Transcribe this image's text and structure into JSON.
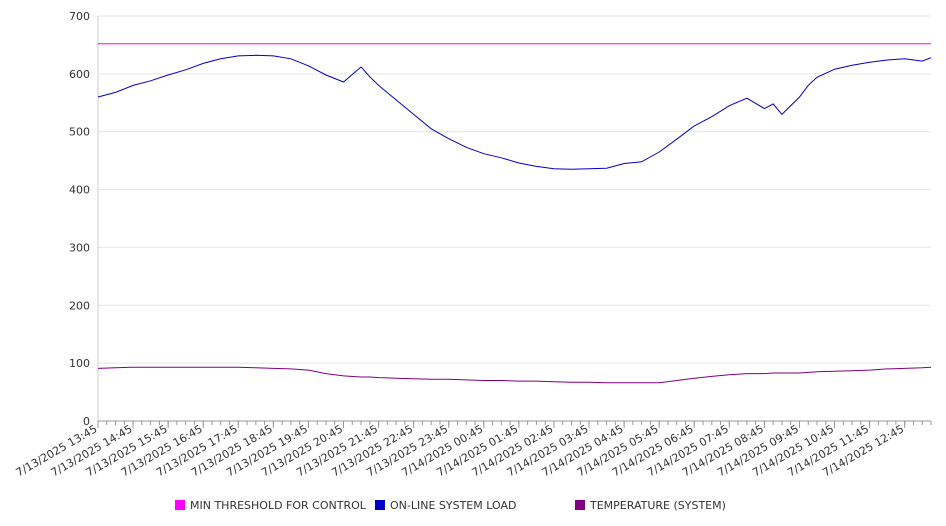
{
  "chart_data": {
    "type": "line",
    "title": "",
    "xlabel": "",
    "ylabel": "",
    "ylim": [
      0,
      700
    ],
    "y_ticks": [
      0,
      100,
      200,
      300,
      400,
      500,
      600,
      700
    ],
    "grid": "horizontal",
    "legend_position": "bottom",
    "x_tick_labels": [
      "7/13/2025 13:45",
      "7/13/2025 14:45",
      "7/13/2025 15:45",
      "7/13/2025 16:45",
      "7/13/2025 17:45",
      "7/13/2025 18:45",
      "7/13/2025 19:45",
      "7/13/2025 20:45",
      "7/13/2025 21:45",
      "7/13/2025 22:45",
      "7/13/2025 23:45",
      "7/14/2025 00:45",
      "7/14/2025 01:45",
      "7/14/2025 02:45",
      "7/14/2025 03:45",
      "7/14/2025 04:45",
      "7/14/2025 05:45",
      "7/14/2025 06:45",
      "7/14/2025 07:45",
      "7/14/2025 08:45",
      "7/14/2025 09:45",
      "7/14/2025 10:45",
      "7/14/2025 11:45",
      "7/14/2025 12:45"
    ],
    "x": [
      "7/13/2025 13:45",
      "7/13/2025 14:15",
      "7/13/2025 14:45",
      "7/13/2025 15:15",
      "7/13/2025 15:45",
      "7/13/2025 16:15",
      "7/13/2025 16:45",
      "7/13/2025 17:15",
      "7/13/2025 17:45",
      "7/13/2025 18:15",
      "7/13/2025 18:45",
      "7/13/2025 19:15",
      "7/13/2025 19:45",
      "7/13/2025 20:15",
      "7/13/2025 20:45",
      "7/13/2025 21:15",
      "7/13/2025 21:30",
      "7/13/2025 21:45",
      "7/13/2025 22:15",
      "7/13/2025 22:45",
      "7/13/2025 23:15",
      "7/13/2025 23:45",
      "7/14/2025 00:15",
      "7/14/2025 00:45",
      "7/14/2025 01:15",
      "7/14/2025 01:45",
      "7/14/2025 02:15",
      "7/14/2025 02:45",
      "7/14/2025 03:15",
      "7/14/2025 03:45",
      "7/14/2025 04:15",
      "7/14/2025 04:45",
      "7/14/2025 05:15",
      "7/14/2025 05:45",
      "7/14/2025 06:15",
      "7/14/2025 06:45",
      "7/14/2025 07:15",
      "7/14/2025 07:45",
      "7/14/2025 08:15",
      "7/14/2025 08:45",
      "7/14/2025 09:00",
      "7/14/2025 09:15",
      "7/14/2025 09:45",
      "7/14/2025 10:00",
      "7/14/2025 10:15",
      "7/14/2025 10:45",
      "7/14/2025 11:15",
      "7/14/2025 11:45",
      "7/14/2025 12:15",
      "7/14/2025 12:45",
      "7/14/2025 13:15",
      "7/14/2025 13:30"
    ],
    "series": [
      {
        "name": "MIN THRESHOLD FOR CONTROL",
        "color": "#ff00ff",
        "values": [
          652,
          652,
          652,
          652,
          652,
          652,
          652,
          652,
          652,
          652,
          652,
          652,
          652,
          652,
          652,
          652,
          652,
          652,
          652,
          652,
          652,
          652,
          652,
          652,
          652,
          652,
          652,
          652,
          652,
          652,
          652,
          652,
          652,
          652,
          652,
          652,
          652,
          652,
          652,
          652,
          652,
          652,
          652,
          652,
          652,
          652,
          652,
          652,
          652,
          652,
          652,
          652
        ]
      },
      {
        "name": "ON-LINE SYSTEM LOAD",
        "color": "#0000cc",
        "values": [
          560,
          568,
          580,
          588,
          598,
          607,
          618,
          626,
          631,
          632,
          631,
          626,
          614,
          598,
          586,
          612,
          595,
          580,
          555,
          530,
          505,
          488,
          473,
          462,
          455,
          446,
          440,
          436,
          435,
          436,
          437,
          445,
          448,
          465,
          487,
          510,
          526,
          545,
          558,
          540,
          548,
          530,
          560,
          580,
          594,
          608,
          615,
          620,
          624,
          626,
          622,
          628
        ]
      },
      {
        "name": "TEMPERATURE (SYSTEM)",
        "color": "#800080",
        "values": [
          91,
          92,
          93,
          93,
          93,
          93,
          93,
          93,
          93,
          92,
          91,
          90,
          88,
          82,
          78,
          76,
          76,
          75,
          74,
          73,
          72,
          72,
          71,
          70,
          70,
          69,
          69,
          68,
          67,
          67,
          66,
          66,
          66,
          66,
          70,
          74,
          77,
          80,
          82,
          82,
          83,
          83,
          83,
          84,
          85,
          86,
          87,
          88,
          90,
          91,
          92,
          93
        ]
      }
    ]
  }
}
